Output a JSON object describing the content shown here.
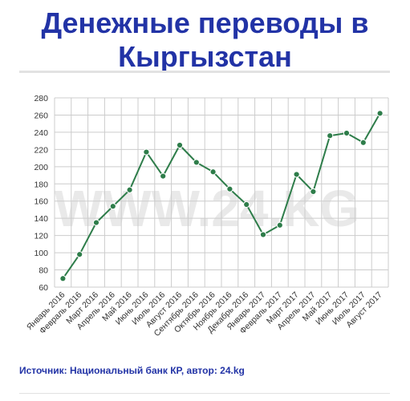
{
  "title": "Денежные переводы в Кыргызстан",
  "source": "Источник: Национальный банк КР, автор: 24.kg",
  "watermark": "WWW.24.KG",
  "colors": {
    "title": "#2233a6",
    "line": "#2e7d4a",
    "marker": "#2e7d4a",
    "grid": "#cccccc"
  },
  "chart_data": {
    "type": "line",
    "title": "Денежные переводы в Кыргызстан",
    "xlabel": "",
    "ylabel": "",
    "ylim": [
      60,
      280
    ],
    "yticks": [
      60,
      80,
      100,
      120,
      140,
      160,
      180,
      200,
      220,
      240,
      260,
      280
    ],
    "grid": true,
    "categories": [
      "Январь 2016",
      "Февраль 2016",
      "Март 2016",
      "Апрель 2016",
      "Май 2016",
      "Июнь 2016",
      "Июль 2016",
      "Август 2016",
      "Сентябрь 2016",
      "Октябрь 2016",
      "Ноябрь 2016",
      "Декабрь 2016",
      "Январь 2017",
      "Февраль 2017",
      "Март 2017",
      "Апрель 2017",
      "Май 2017",
      "Июнь 2017",
      "Июль 2017",
      "Август 2017"
    ],
    "series": [
      {
        "values": [
          70,
          98,
          135,
          154,
          173,
          217,
          189,
          225,
          205,
          194,
          174,
          156,
          121,
          132,
          191,
          171,
          236,
          239,
          228,
          262
        ]
      }
    ]
  }
}
